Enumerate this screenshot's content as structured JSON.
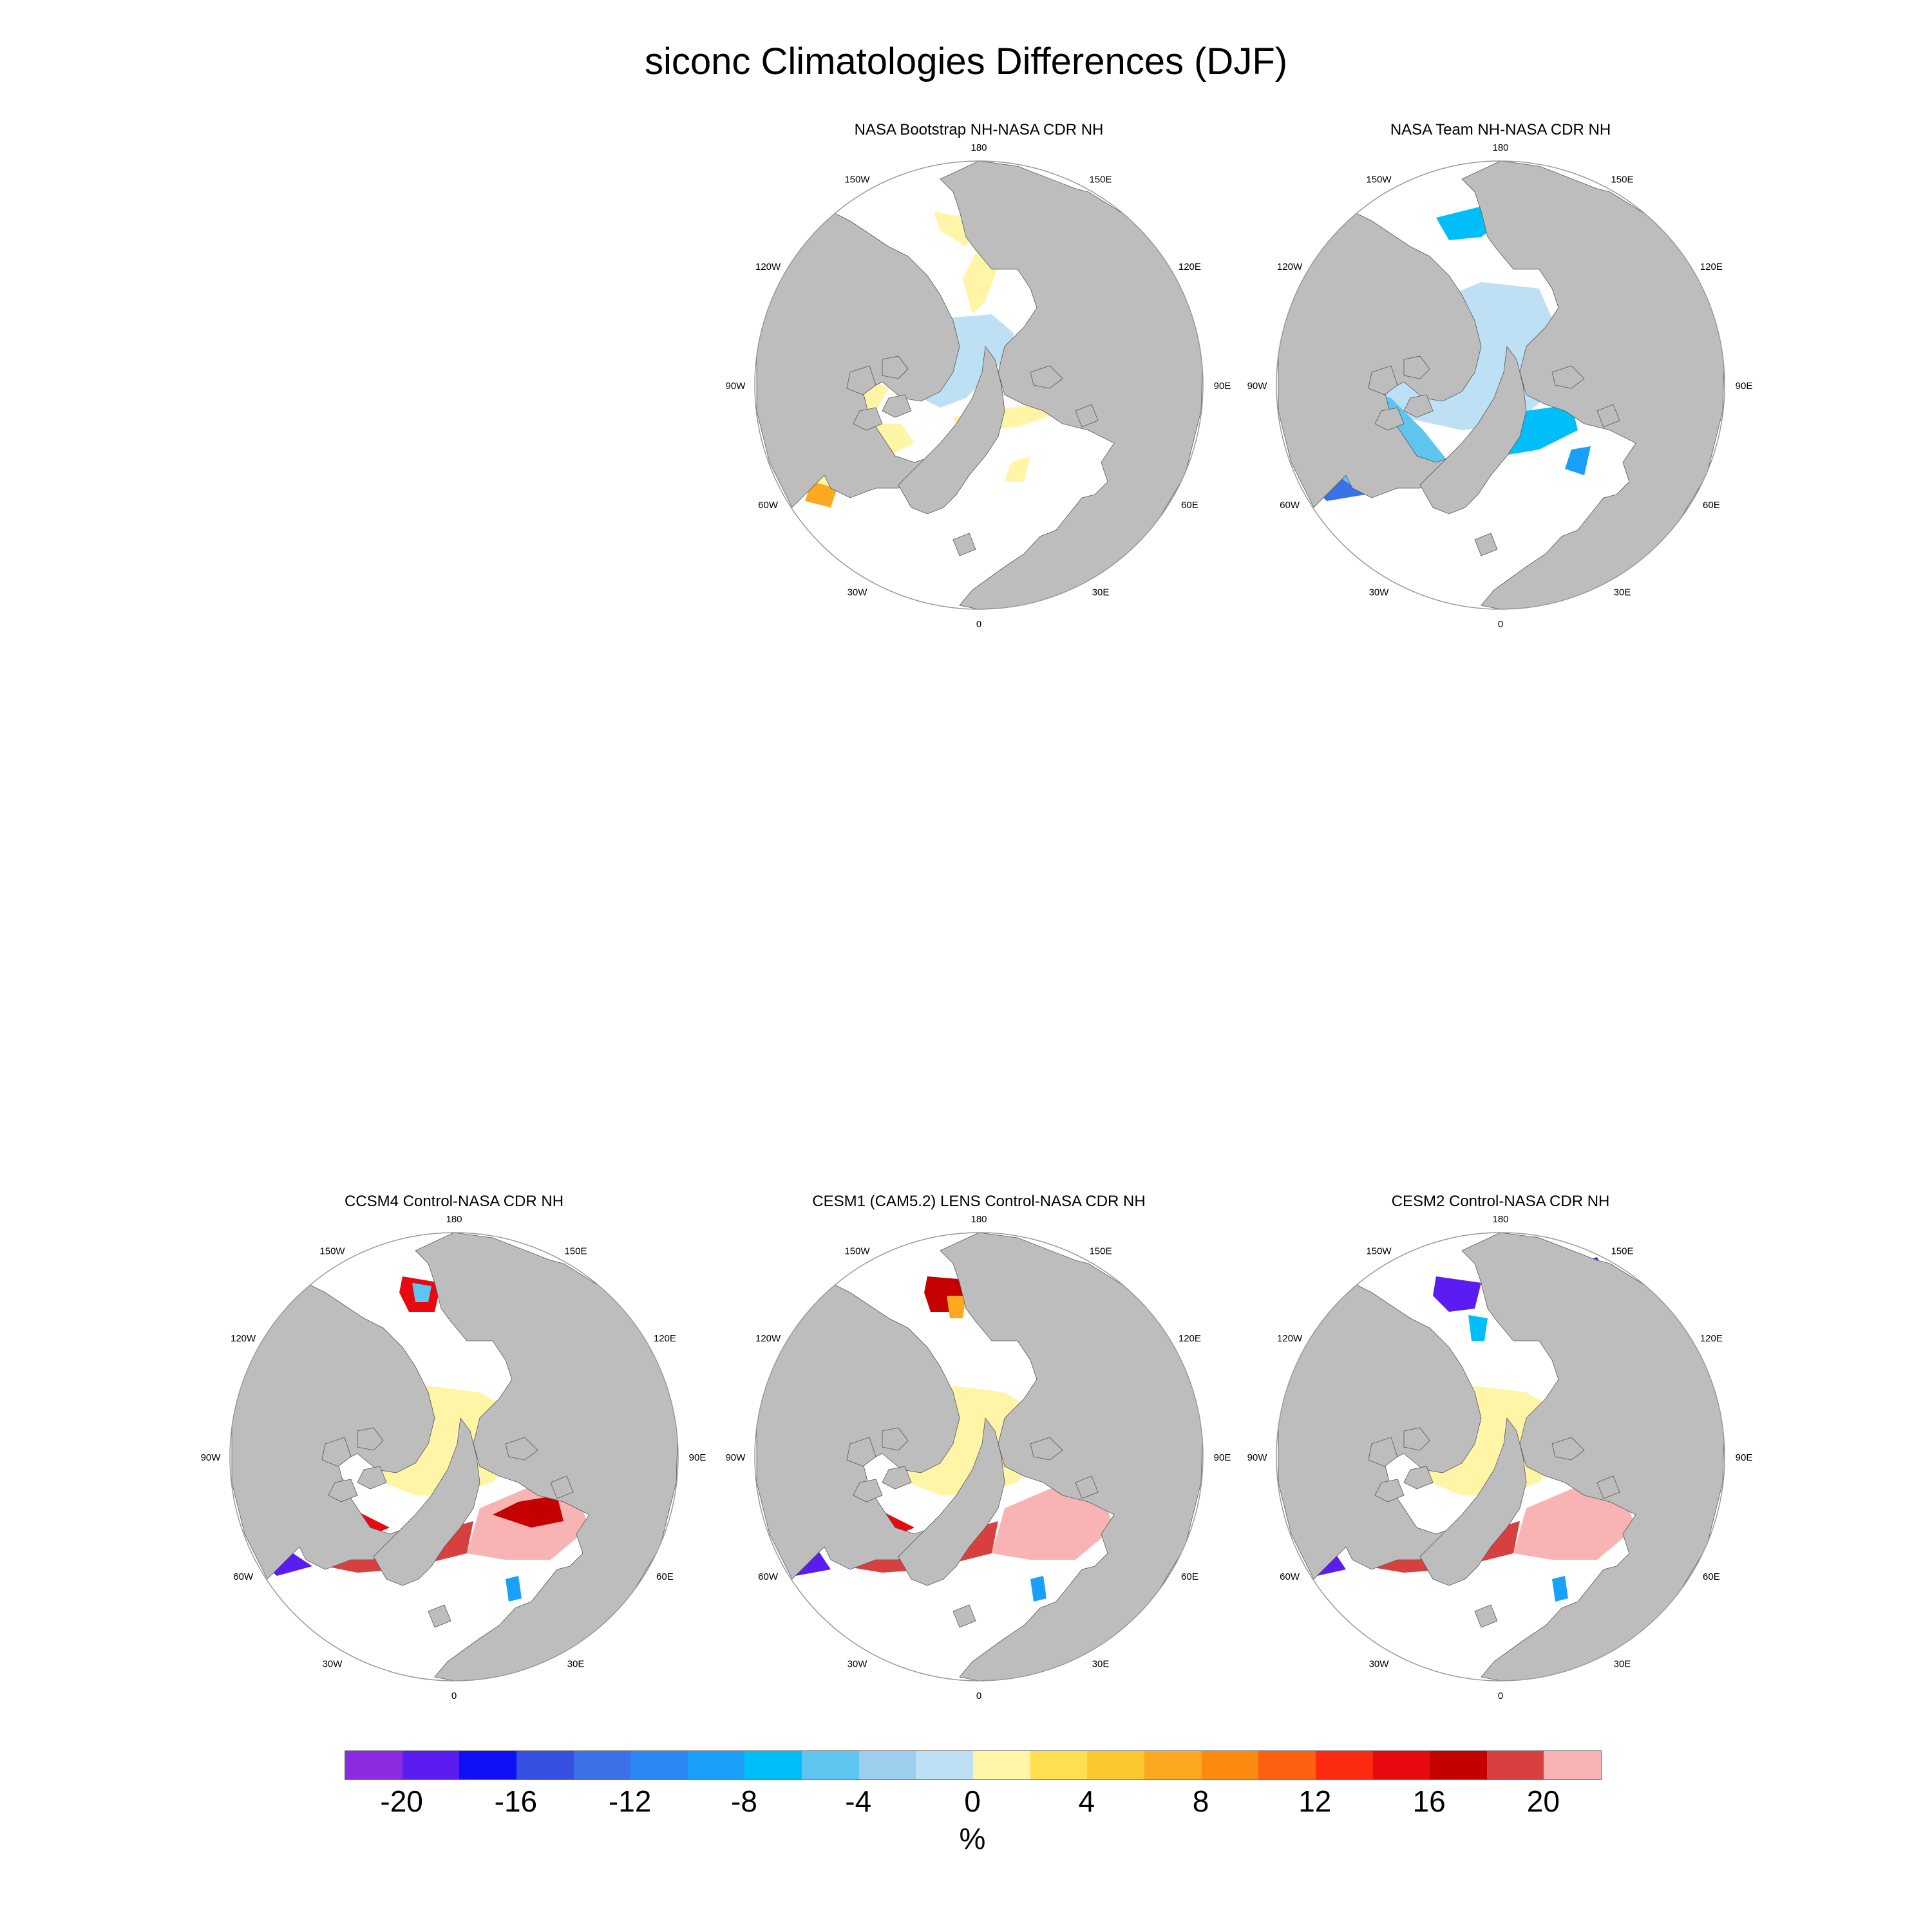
{
  "title": "siconc Climatologies Differences (DJF)",
  "panels": [
    {
      "title": "NASA Bootstrap NH-NASA CDR NH",
      "scheme": "bootstrap"
    },
    {
      "title": "NASA Team NH-NASA CDR NH",
      "scheme": "team"
    },
    {
      "title": "CCSM4 Control-NASA CDR NH",
      "scheme": "ccsm4"
    },
    {
      "title": "CESM1 (CAM5.2) LENS Control-NASA CDR NH",
      "scheme": "cesm1"
    },
    {
      "title": "CESM2 Control-NASA CDR NH",
      "scheme": "cesm2"
    }
  ],
  "longitude_labels": [
    "180",
    "150E",
    "120E",
    "90E",
    "60E",
    "30E",
    "0",
    "30W",
    "60W",
    "90W",
    "120W",
    "150W"
  ],
  "colorbar": {
    "colors": [
      "#8a2be2",
      "#5a1cf0",
      "#1010f5",
      "#3550e0",
      "#3a70e8",
      "#2a88f5",
      "#1aa0f8",
      "#00bff8",
      "#5ec5f0",
      "#9ccfee",
      "#bde0f5",
      "#fff5a6",
      "#ffe050",
      "#fcc830",
      "#fca820",
      "#fc8a10",
      "#fc6010",
      "#fc2a10",
      "#e80810",
      "#c40000",
      "#d84040",
      "#f8b4b4"
    ],
    "tick_labels": [
      "-20",
      "-16",
      "-12",
      "-8",
      "-4",
      "0",
      "4",
      "8",
      "12",
      "16",
      "20"
    ],
    "units": "%"
  },
  "colors": {
    "land": "#bdbdbd",
    "ocean": "#ffffff",
    "outline": "#999999"
  }
}
